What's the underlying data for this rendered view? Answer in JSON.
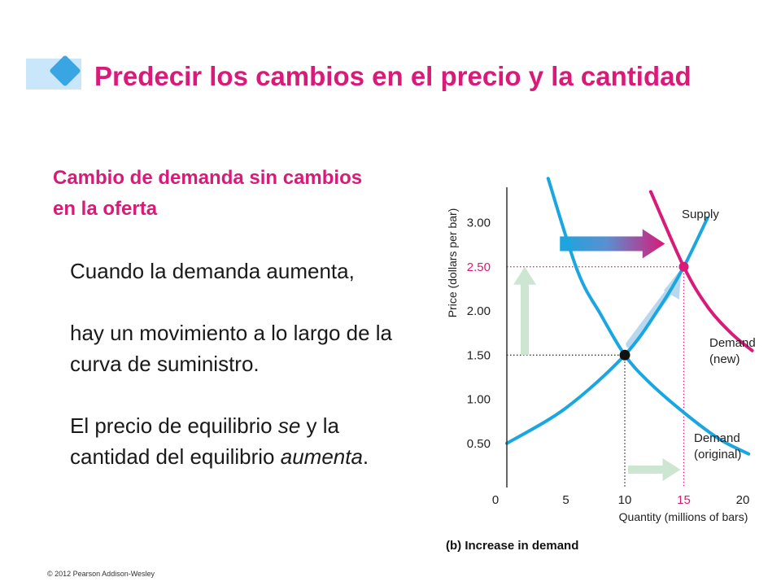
{
  "slide": {
    "title": "Predecir los cambios en el precio y la cantidad",
    "subtitle": "Cambio de demanda sin cambios en la oferta",
    "body": {
      "p1": "Cuando la demanda aumenta,",
      "p2": "hay un movimiento a lo largo de la curva de suministro.",
      "p3_pre": "El precio de equilibrio ",
      "p3_em1": "se",
      "p3_mid": " y la cantidad del equilibrio ",
      "p3_em2": "aumenta",
      "p3_post": "."
    },
    "copyright": "© 2012 Pearson Addison-Wesley",
    "accent_color": "#d81a78",
    "diamond_color": "#3aa5e3"
  },
  "chart_data": {
    "type": "line",
    "caption": "(b) Increase in demand",
    "xlabel": "Quantity (millions of bars)",
    "ylabel": "Price (dollars per bar)",
    "xlim": [
      0,
      22
    ],
    "ylim": [
      0,
      3.4
    ],
    "x_ticks": [
      "0",
      "5",
      "10",
      "15",
      "20"
    ],
    "y_ticks": [
      "0.50",
      "1.00",
      "1.50",
      "2.00",
      "2.50",
      "3.00"
    ],
    "series": [
      {
        "name": "Supply",
        "color": "#1aa6e0",
        "points": [
          [
            0,
            0.5
          ],
          [
            5,
            0.9
          ],
          [
            10,
            1.5
          ],
          [
            13,
            2.05
          ],
          [
            15,
            2.5
          ],
          [
            17,
            3.05
          ]
        ]
      },
      {
        "name": "Demand (original)",
        "color": "#1aa6e0",
        "points": [
          [
            3.5,
            3.5
          ],
          [
            6,
            2.45
          ],
          [
            8,
            1.95
          ],
          [
            10,
            1.5
          ],
          [
            12,
            1.2
          ],
          [
            15,
            0.85
          ],
          [
            18,
            0.55
          ],
          [
            20.5,
            0.38
          ]
        ]
      },
      {
        "name": "Demand (new)",
        "color": "#d81a78",
        "points": [
          [
            12.2,
            3.35
          ],
          [
            15,
            2.5
          ],
          [
            17,
            2.05
          ],
          [
            19,
            1.75
          ],
          [
            20.8,
            1.55
          ]
        ]
      }
    ],
    "labels": {
      "supply": "Supply",
      "demand_new_1": "Demand",
      "demand_new_2": "(new)",
      "demand_orig_1": "Demand",
      "demand_orig_2": "(original)"
    },
    "equilibria": [
      {
        "x": 10,
        "y": 1.5,
        "color": "#111111"
      },
      {
        "x": 15,
        "y": 2.5,
        "color": "#d81a78"
      }
    ]
  }
}
